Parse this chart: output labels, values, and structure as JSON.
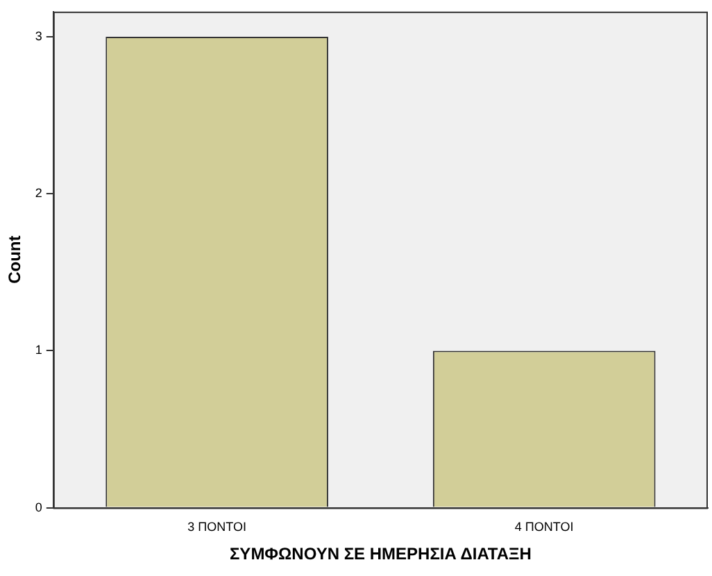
{
  "chart_data": {
    "type": "bar",
    "xlabel": "ΣΥΜΦΩΝΟΥΝ ΣΕ ΗΜΕΡΗΣΙΑ ΔΙΑΤΑΞΗ",
    "ylabel": "Count",
    "categories": [
      "3 ΠΟΝΤΟΙ",
      "4 ΠΟΝΤΟΙ"
    ],
    "values": [
      3,
      1
    ],
    "color": "#d2ce98",
    "ylim": [
      0,
      3.16
    ],
    "yticks": [
      0,
      1,
      2,
      3
    ],
    "grid": false,
    "legend": false
  }
}
